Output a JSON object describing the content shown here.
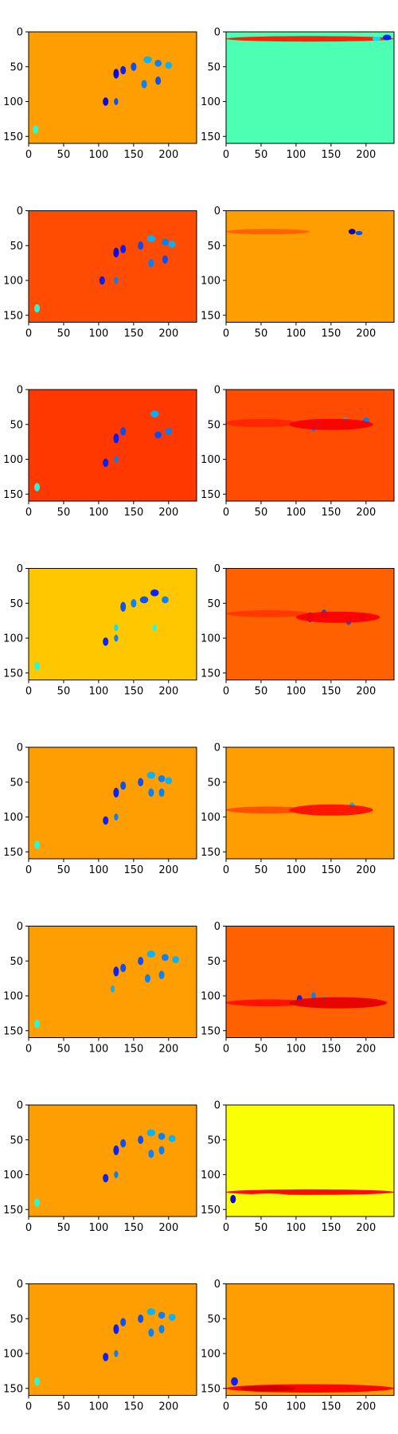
{
  "chart_data": {
    "type": "heatmap",
    "colormap": "jet",
    "grid": false,
    "rows": 8,
    "cols": 2,
    "extent": {
      "x": [
        0,
        240
      ],
      "y": [
        160,
        0
      ]
    },
    "xticks": [
      0,
      50,
      100,
      150,
      200
    ],
    "yticks": [
      0,
      50,
      100,
      150
    ],
    "panels": [
      {
        "id": "r1-left",
        "background": 0.72,
        "blobs": [
          [
            125,
            60,
            4,
            7,
            0.1
          ],
          [
            135,
            55,
            4,
            6,
            0.15
          ],
          [
            150,
            50,
            4,
            6,
            0.2
          ],
          [
            170,
            40,
            6,
            5,
            0.3
          ],
          [
            185,
            45,
            5,
            5,
            0.25
          ],
          [
            200,
            48,
            5,
            5,
            0.3
          ],
          [
            110,
            100,
            4,
            6,
            0.1
          ],
          [
            125,
            100,
            3,
            5,
            0.2
          ],
          [
            165,
            75,
            4,
            6,
            0.25
          ],
          [
            185,
            70,
            4,
            6,
            0.2
          ],
          [
            10,
            140,
            4,
            6,
            0.4
          ]
        ]
      },
      {
        "id": "r1-right",
        "background": 0.45,
        "blobs": [
          [
            120,
            10,
            120,
            4,
            0.85
          ],
          [
            230,
            8,
            6,
            4,
            0.15
          ],
          [
            215,
            10,
            6,
            3,
            0.35
          ]
        ]
      },
      {
        "id": "r2-left",
        "background": 0.8,
        "blobs": [
          [
            125,
            60,
            4,
            7,
            0.1
          ],
          [
            135,
            55,
            4,
            6,
            0.15
          ],
          [
            160,
            50,
            4,
            6,
            0.2
          ],
          [
            175,
            40,
            6,
            5,
            0.3
          ],
          [
            195,
            45,
            5,
            5,
            0.25
          ],
          [
            205,
            48,
            5,
            5,
            0.3
          ],
          [
            105,
            100,
            4,
            6,
            0.15
          ],
          [
            125,
            100,
            3,
            5,
            0.25
          ],
          [
            175,
            75,
            4,
            6,
            0.25
          ],
          [
            195,
            70,
            4,
            6,
            0.2
          ],
          [
            12,
            140,
            4,
            6,
            0.4
          ]
        ]
      },
      {
        "id": "r2-right",
        "background": 0.72,
        "blobs": [
          [
            60,
            30,
            60,
            4,
            0.78
          ],
          [
            180,
            30,
            5,
            4,
            0.05
          ],
          [
            190,
            32,
            5,
            3,
            0.2
          ]
        ]
      },
      {
        "id": "r3-left",
        "background": 0.82,
        "blobs": [
          [
            125,
            70,
            4,
            7,
            0.15
          ],
          [
            135,
            60,
            4,
            6,
            0.2
          ],
          [
            180,
            35,
            6,
            5,
            0.3
          ],
          [
            185,
            65,
            5,
            5,
            0.2
          ],
          [
            200,
            60,
            5,
            5,
            0.25
          ],
          [
            110,
            105,
            4,
            6,
            0.15
          ],
          [
            125,
            100,
            3,
            5,
            0.25
          ],
          [
            12,
            140,
            4,
            6,
            0.4
          ]
        ]
      },
      {
        "id": "r3-right",
        "background": 0.8,
        "blobs": [
          [
            50,
            48,
            50,
            6,
            0.84
          ],
          [
            125,
            55,
            4,
            5,
            0.25
          ],
          [
            135,
            50,
            4,
            6,
            0.3
          ],
          [
            170,
            45,
            5,
            5,
            0.3
          ],
          [
            200,
            45,
            5,
            5,
            0.25
          ],
          [
            150,
            50,
            60,
            8,
            0.88
          ]
        ]
      },
      {
        "id": "r4-left",
        "background": 0.68,
        "blobs": [
          [
            135,
            55,
            4,
            7,
            0.2
          ],
          [
            150,
            50,
            4,
            6,
            0.25
          ],
          [
            165,
            45,
            6,
            5,
            0.2
          ],
          [
            180,
            35,
            6,
            5,
            0.15
          ],
          [
            195,
            45,
            5,
            5,
            0.25
          ],
          [
            110,
            105,
            4,
            6,
            0.15
          ],
          [
            125,
            100,
            3,
            5,
            0.25
          ],
          [
            125,
            85,
            3,
            5,
            0.35
          ],
          [
            180,
            85,
            3,
            5,
            0.4
          ],
          [
            12,
            140,
            4,
            6,
            0.4
          ]
        ]
      },
      {
        "id": "r4-right",
        "background": 0.78,
        "blobs": [
          [
            60,
            65,
            60,
            5,
            0.82
          ],
          [
            120,
            70,
            4,
            7,
            0.15
          ],
          [
            140,
            65,
            4,
            6,
            0.2
          ],
          [
            175,
            75,
            4,
            6,
            0.2
          ],
          [
            195,
            70,
            4,
            6,
            0.2
          ],
          [
            160,
            70,
            60,
            8,
            0.88
          ]
        ]
      },
      {
        "id": "r5-left",
        "background": 0.72,
        "blobs": [
          [
            125,
            65,
            4,
            7,
            0.15
          ],
          [
            135,
            55,
            4,
            6,
            0.2
          ],
          [
            160,
            50,
            4,
            6,
            0.2
          ],
          [
            175,
            40,
            6,
            5,
            0.3
          ],
          [
            190,
            45,
            5,
            5,
            0.25
          ],
          [
            200,
            48,
            5,
            5,
            0.3
          ],
          [
            110,
            105,
            4,
            6,
            0.15
          ],
          [
            125,
            100,
            3,
            5,
            0.25
          ],
          [
            175,
            65,
            4,
            6,
            0.25
          ],
          [
            190,
            65,
            4,
            6,
            0.25
          ],
          [
            12,
            140,
            4,
            6,
            0.4
          ]
        ]
      },
      {
        "id": "r5-right",
        "background": 0.72,
        "blobs": [
          [
            60,
            90,
            60,
            5,
            0.8
          ],
          [
            120,
            90,
            4,
            6,
            0.25
          ],
          [
            180,
            85,
            4,
            6,
            0.3
          ],
          [
            150,
            90,
            60,
            8,
            0.86
          ]
        ]
      },
      {
        "id": "r6-left",
        "background": 0.72,
        "blobs": [
          [
            125,
            65,
            4,
            7,
            0.15
          ],
          [
            135,
            60,
            4,
            6,
            0.2
          ],
          [
            160,
            50,
            4,
            6,
            0.2
          ],
          [
            175,
            40,
            6,
            5,
            0.3
          ],
          [
            195,
            45,
            5,
            5,
            0.25
          ],
          [
            210,
            48,
            5,
            5,
            0.3
          ],
          [
            120,
            90,
            3,
            5,
            0.3
          ],
          [
            170,
            75,
            4,
            6,
            0.25
          ],
          [
            190,
            70,
            4,
            6,
            0.25
          ],
          [
            12,
            140,
            4,
            6,
            0.4
          ]
        ]
      },
      {
        "id": "r6-right",
        "background": 0.78,
        "blobs": [
          [
            60,
            110,
            60,
            5,
            0.86
          ],
          [
            105,
            105,
            4,
            6,
            0.15
          ],
          [
            125,
            100,
            3,
            5,
            0.25
          ],
          [
            140,
            105,
            3,
            5,
            0.3
          ],
          [
            160,
            110,
            70,
            8,
            0.9
          ]
        ]
      },
      {
        "id": "r7-left",
        "background": 0.72,
        "blobs": [
          [
            125,
            65,
            4,
            7,
            0.15
          ],
          [
            135,
            55,
            4,
            6,
            0.2
          ],
          [
            160,
            50,
            4,
            6,
            0.2
          ],
          [
            175,
            40,
            6,
            5,
            0.3
          ],
          [
            190,
            45,
            5,
            5,
            0.25
          ],
          [
            205,
            48,
            5,
            5,
            0.3
          ],
          [
            110,
            105,
            4,
            6,
            0.15
          ],
          [
            125,
            100,
            3,
            5,
            0.25
          ],
          [
            175,
            70,
            4,
            6,
            0.25
          ],
          [
            190,
            65,
            4,
            6,
            0.25
          ],
          [
            12,
            140,
            4,
            6,
            0.4
          ]
        ]
      },
      {
        "id": "r7-right",
        "background": 0.62,
        "blobs": [
          [
            120,
            125,
            120,
            4,
            0.88
          ],
          [
            10,
            135,
            4,
            6,
            0.1
          ],
          [
            60,
            130,
            30,
            3,
            0.6
          ]
        ]
      },
      {
        "id": "r8-left",
        "background": 0.72,
        "blobs": [
          [
            125,
            65,
            4,
            7,
            0.15
          ],
          [
            135,
            55,
            4,
            6,
            0.2
          ],
          [
            160,
            50,
            4,
            6,
            0.2
          ],
          [
            175,
            40,
            6,
            5,
            0.3
          ],
          [
            190,
            45,
            5,
            5,
            0.25
          ],
          [
            205,
            48,
            5,
            5,
            0.3
          ],
          [
            110,
            105,
            4,
            6,
            0.15
          ],
          [
            125,
            100,
            3,
            5,
            0.25
          ],
          [
            175,
            70,
            4,
            6,
            0.25
          ],
          [
            190,
            65,
            4,
            6,
            0.25
          ],
          [
            12,
            140,
            4,
            6,
            0.4
          ]
        ]
      },
      {
        "id": "r8-right",
        "background": 0.72,
        "blobs": [
          [
            120,
            150,
            120,
            6,
            0.88
          ],
          [
            12,
            140,
            5,
            6,
            0.15
          ],
          [
            60,
            150,
            40,
            4,
            0.92
          ]
        ]
      }
    ]
  }
}
